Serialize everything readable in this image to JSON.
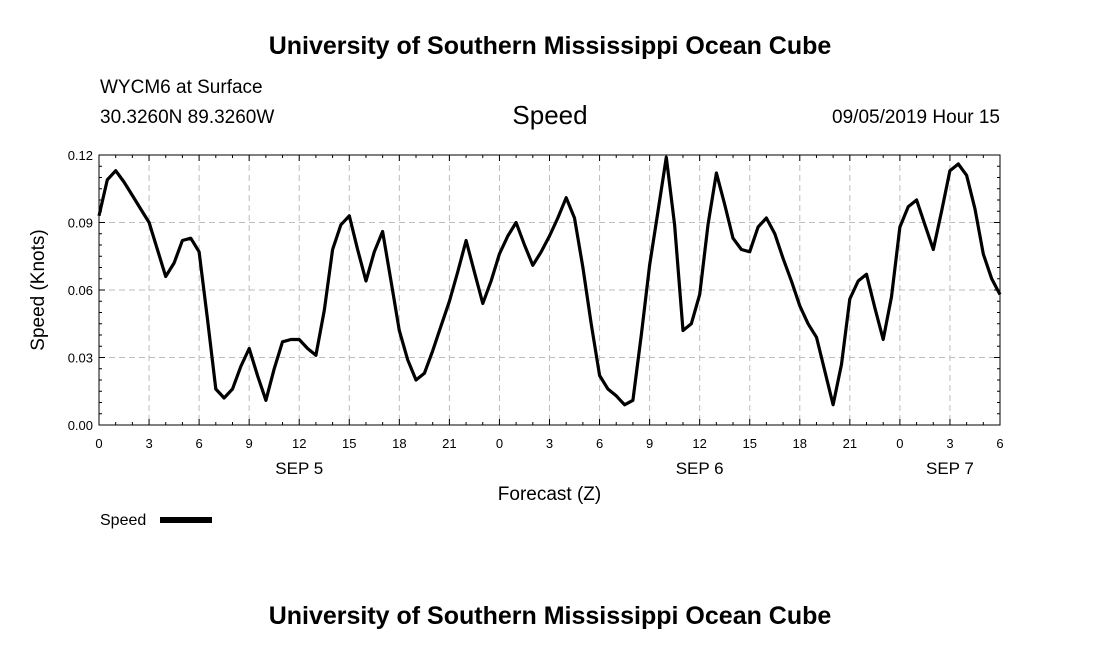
{
  "header": {
    "title_top": "University of Southern Mississippi Ocean Cube",
    "station": "WYCM6 at Surface",
    "location": "30.3260N 89.3260W",
    "variable": "Speed",
    "timestamp": "09/05/2019 Hour 15",
    "title_bottom": "University of Southern Mississippi Ocean Cube"
  },
  "chart_data": {
    "type": "line",
    "title": "Speed",
    "xlabel": "Forecast (Z)",
    "ylabel": "Speed (Knots)",
    "ylim": [
      0,
      0.12
    ],
    "xlim": [
      0,
      54
    ],
    "y_ticks": [
      "0.00",
      "0.03",
      "0.06",
      "0.09",
      "0.12"
    ],
    "y_tick_values": [
      0,
      0.03,
      0.06,
      0.09,
      0.12
    ],
    "x_ticks": [
      "0",
      "3",
      "6",
      "9",
      "12",
      "15",
      "18",
      "21",
      "0",
      "3",
      "6",
      "9",
      "12",
      "15",
      "18",
      "21",
      "0",
      "3",
      "6"
    ],
    "x_tick_values": [
      0,
      3,
      6,
      9,
      12,
      15,
      18,
      21,
      24,
      27,
      30,
      33,
      36,
      39,
      42,
      45,
      48,
      51,
      54
    ],
    "day_labels": [
      {
        "label": "SEP 5",
        "x": 12
      },
      {
        "label": "SEP 6",
        "x": 36
      },
      {
        "label": "SEP 7",
        "x": 51
      }
    ],
    "grid": true,
    "legend": {
      "position": "bottom-left",
      "label": "Speed"
    },
    "series": [
      {
        "name": "Speed",
        "color": "#000000",
        "x": [
          0,
          0.5,
          1,
          1.5,
          2,
          2.5,
          3,
          3.5,
          4,
          4.5,
          5,
          5.5,
          6,
          6.5,
          7,
          7.5,
          8,
          8.5,
          9,
          9.5,
          10,
          10.5,
          11,
          11.5,
          12,
          12.5,
          13,
          13.5,
          14,
          14.5,
          15,
          15.5,
          16,
          16.5,
          17,
          17.5,
          18,
          18.5,
          19,
          19.5,
          20,
          20.5,
          21,
          21.5,
          22,
          22.5,
          23,
          23.5,
          24,
          24.5,
          25,
          25.5,
          26,
          26.5,
          27,
          27.5,
          28,
          28.5,
          29,
          29.5,
          30,
          30.5,
          31,
          31.5,
          32,
          32.5,
          33,
          33.5,
          34,
          34.5,
          35,
          35.5,
          36,
          36.5,
          37,
          37.5,
          38,
          38.5,
          39,
          39.5,
          40,
          40.5,
          41,
          41.5,
          42,
          42.5,
          43,
          43.5,
          44,
          44.5,
          45,
          45.5,
          46,
          46.5,
          47,
          47.5,
          48,
          48.5,
          49,
          49.5,
          50,
          50.5,
          51,
          51.5,
          52,
          52.5,
          53,
          53.5,
          54
        ],
        "values": [
          0.093,
          0.109,
          0.113,
          0.108,
          0.102,
          0.096,
          0.09,
          0.078,
          0.066,
          0.072,
          0.082,
          0.083,
          0.077,
          0.047,
          0.016,
          0.012,
          0.016,
          0.026,
          0.034,
          0.022,
          0.011,
          0.025,
          0.037,
          0.038,
          0.038,
          0.034,
          0.031,
          0.051,
          0.078,
          0.089,
          0.093,
          0.078,
          0.064,
          0.077,
          0.086,
          0.064,
          0.042,
          0.029,
          0.02,
          0.023,
          0.033,
          0.044,
          0.055,
          0.068,
          0.082,
          0.068,
          0.054,
          0.064,
          0.076,
          0.084,
          0.09,
          0.08,
          0.071,
          0.077,
          0.084,
          0.092,
          0.101,
          0.092,
          0.07,
          0.045,
          0.022,
          0.016,
          0.013,
          0.009,
          0.011,
          0.04,
          0.071,
          0.095,
          0.119,
          0.089,
          0.042,
          0.045,
          0.058,
          0.089,
          0.112,
          0.098,
          0.083,
          0.078,
          0.077,
          0.088,
          0.092,
          0.085,
          0.074,
          0.064,
          0.053,
          0.045,
          0.039,
          0.024,
          0.009,
          0.027,
          0.056,
          0.064,
          0.067,
          0.052,
          0.038,
          0.057,
          0.088,
          0.097,
          0.1,
          0.089,
          0.078,
          0.095,
          0.113,
          0.116,
          0.111,
          0.096,
          0.076,
          0.065,
          0.058
        ]
      }
    ]
  }
}
